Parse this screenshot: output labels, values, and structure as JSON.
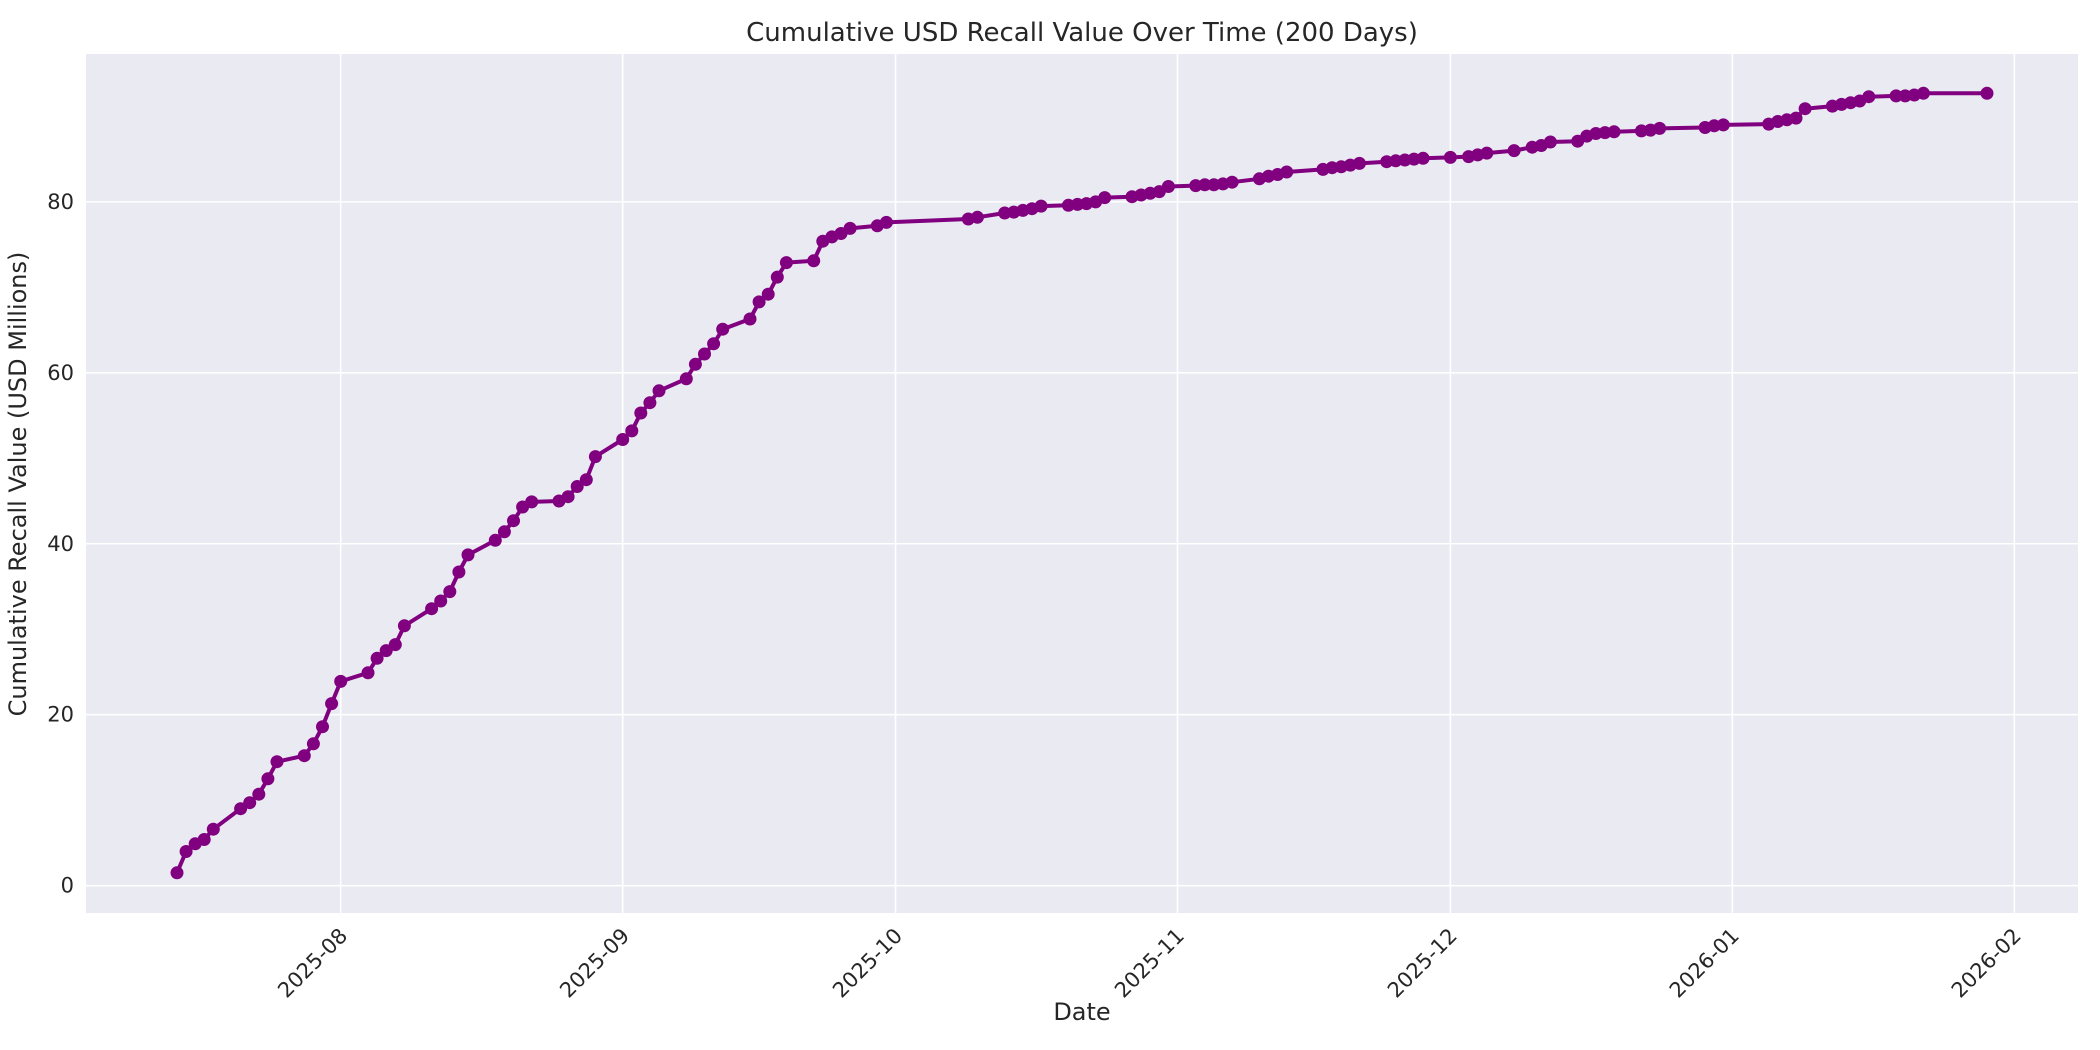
{
  "figure": {
    "title": "Cumulative USD Recall Value Over Time (200 Days)",
    "xlabel": "Date",
    "ylabel": "Cumulative Recall Value (USD Millions)"
  },
  "chart_data": {
    "type": "line",
    "title": "Cumulative USD Recall Value Over Time (200 Days)",
    "xlabel": "Date",
    "ylabel": "Cumulative Recall Value (USD Millions)",
    "legend_position": "none",
    "grid": true,
    "style": {
      "line_color": "#800080",
      "marker": "circle",
      "marker_radius": 6.5,
      "line_width": 4,
      "plot_background": "#eaeaf2",
      "gridline_color": "#ffffff",
      "figure_background": "#ffffff",
      "text_color": "#262626",
      "x_tick_rotation_deg": 45
    },
    "xlim": [
      "2025-07-04",
      "2026-02-08"
    ],
    "ylim": [
      -3.2,
      97.3
    ],
    "x_ticks": [
      {
        "label": "2025-08",
        "date": "2025-08-01"
      },
      {
        "label": "2025-09",
        "date": "2025-09-01"
      },
      {
        "label": "2025-10",
        "date": "2025-10-01"
      },
      {
        "label": "2025-11",
        "date": "2025-11-01"
      },
      {
        "label": "2025-12",
        "date": "2025-12-01"
      },
      {
        "label": "2026-01",
        "date": "2026-01-01"
      },
      {
        "label": "2026-02",
        "date": "2026-02-01"
      }
    ],
    "y_ticks": [
      0,
      20,
      40,
      60,
      80
    ],
    "series": [
      {
        "name": "Cumulative recall value (USD millions)",
        "points": [
          [
            "2025-07-14",
            1.5
          ],
          [
            "2025-07-15",
            4.0
          ],
          [
            "2025-07-16",
            4.9
          ],
          [
            "2025-07-17",
            5.4
          ],
          [
            "2025-07-18",
            6.6
          ],
          [
            "2025-07-21",
            9.0
          ],
          [
            "2025-07-22",
            9.7
          ],
          [
            "2025-07-23",
            10.7
          ],
          [
            "2025-07-24",
            12.5
          ],
          [
            "2025-07-25",
            14.5
          ],
          [
            "2025-07-28",
            15.2
          ],
          [
            "2025-07-29",
            16.6
          ],
          [
            "2025-07-30",
            18.6
          ],
          [
            "2025-07-31",
            21.3
          ],
          [
            "2025-08-01",
            23.9
          ],
          [
            "2025-08-04",
            24.9
          ],
          [
            "2025-08-05",
            26.6
          ],
          [
            "2025-08-06",
            27.5
          ],
          [
            "2025-08-07",
            28.2
          ],
          [
            "2025-08-08",
            30.4
          ],
          [
            "2025-08-11",
            32.4
          ],
          [
            "2025-08-12",
            33.3
          ],
          [
            "2025-08-13",
            34.4
          ],
          [
            "2025-08-14",
            36.7
          ],
          [
            "2025-08-15",
            38.7
          ],
          [
            "2025-08-18",
            40.4
          ],
          [
            "2025-08-19",
            41.4
          ],
          [
            "2025-08-20",
            42.7
          ],
          [
            "2025-08-21",
            44.3
          ],
          [
            "2025-08-22",
            44.9
          ],
          [
            "2025-08-25",
            45.0
          ],
          [
            "2025-08-26",
            45.5
          ],
          [
            "2025-08-27",
            46.7
          ],
          [
            "2025-08-28",
            47.5
          ],
          [
            "2025-08-29",
            50.2
          ],
          [
            "2025-09-01",
            52.2
          ],
          [
            "2025-09-02",
            53.2
          ],
          [
            "2025-09-03",
            55.3
          ],
          [
            "2025-09-04",
            56.5
          ],
          [
            "2025-09-05",
            57.9
          ],
          [
            "2025-09-08",
            59.3
          ],
          [
            "2025-09-09",
            61.0
          ],
          [
            "2025-09-10",
            62.2
          ],
          [
            "2025-09-11",
            63.4
          ],
          [
            "2025-09-12",
            65.1
          ],
          [
            "2025-09-15",
            66.3
          ],
          [
            "2025-09-16",
            68.3
          ],
          [
            "2025-09-17",
            69.2
          ],
          [
            "2025-09-18",
            71.2
          ],
          [
            "2025-09-19",
            72.9
          ],
          [
            "2025-09-22",
            73.1
          ],
          [
            "2025-09-23",
            75.4
          ],
          [
            "2025-09-24",
            75.9
          ],
          [
            "2025-09-25",
            76.3
          ],
          [
            "2025-09-26",
            76.9
          ],
          [
            "2025-09-29",
            77.2
          ],
          [
            "2025-09-30",
            77.6
          ],
          [
            "2025-10-09",
            78.0
          ],
          [
            "2025-10-10",
            78.2
          ],
          [
            "2025-10-13",
            78.7
          ],
          [
            "2025-10-14",
            78.8
          ],
          [
            "2025-10-15",
            79.0
          ],
          [
            "2025-10-16",
            79.2
          ],
          [
            "2025-10-17",
            79.5
          ],
          [
            "2025-10-20",
            79.6
          ],
          [
            "2025-10-21",
            79.7
          ],
          [
            "2025-10-22",
            79.8
          ],
          [
            "2025-10-23",
            80.0
          ],
          [
            "2025-10-24",
            80.5
          ],
          [
            "2025-10-27",
            80.6
          ],
          [
            "2025-10-28",
            80.8
          ],
          [
            "2025-10-29",
            81.0
          ],
          [
            "2025-10-30",
            81.2
          ],
          [
            "2025-10-31",
            81.8
          ],
          [
            "2025-11-03",
            81.9
          ],
          [
            "2025-11-04",
            82.0
          ],
          [
            "2025-11-05",
            82.0
          ],
          [
            "2025-11-06",
            82.1
          ],
          [
            "2025-11-07",
            82.3
          ],
          [
            "2025-11-10",
            82.7
          ],
          [
            "2025-11-11",
            83.0
          ],
          [
            "2025-11-12",
            83.2
          ],
          [
            "2025-11-13",
            83.5
          ],
          [
            "2025-11-17",
            83.8
          ],
          [
            "2025-11-18",
            84.0
          ],
          [
            "2025-11-19",
            84.1
          ],
          [
            "2025-11-20",
            84.3
          ],
          [
            "2025-11-21",
            84.5
          ],
          [
            "2025-11-24",
            84.7
          ],
          [
            "2025-11-25",
            84.8
          ],
          [
            "2025-11-26",
            84.9
          ],
          [
            "2025-11-27",
            85.0
          ],
          [
            "2025-11-28",
            85.1
          ],
          [
            "2025-12-01",
            85.2
          ],
          [
            "2025-12-03",
            85.3
          ],
          [
            "2025-12-04",
            85.5
          ],
          [
            "2025-12-05",
            85.7
          ],
          [
            "2025-12-08",
            86.0
          ],
          [
            "2025-12-10",
            86.4
          ],
          [
            "2025-12-11",
            86.6
          ],
          [
            "2025-12-12",
            87.0
          ],
          [
            "2025-12-15",
            87.1
          ],
          [
            "2025-12-16",
            87.7
          ],
          [
            "2025-12-17",
            88.0
          ],
          [
            "2025-12-18",
            88.1
          ],
          [
            "2025-12-19",
            88.2
          ],
          [
            "2025-12-22",
            88.3
          ],
          [
            "2025-12-23",
            88.4
          ],
          [
            "2025-12-24",
            88.6
          ],
          [
            "2025-12-29",
            88.7
          ],
          [
            "2025-12-30",
            88.9
          ],
          [
            "2025-12-31",
            89.0
          ],
          [
            "2026-01-05",
            89.1
          ],
          [
            "2026-01-06",
            89.4
          ],
          [
            "2026-01-07",
            89.6
          ],
          [
            "2026-01-08",
            89.8
          ],
          [
            "2026-01-09",
            90.9
          ],
          [
            "2026-01-12",
            91.2
          ],
          [
            "2026-01-13",
            91.4
          ],
          [
            "2026-01-14",
            91.6
          ],
          [
            "2026-01-15",
            91.8
          ],
          [
            "2026-01-16",
            92.3
          ],
          [
            "2026-01-19",
            92.4
          ],
          [
            "2026-01-20",
            92.4
          ],
          [
            "2026-01-21",
            92.5
          ],
          [
            "2026-01-22",
            92.7
          ],
          [
            "2026-01-29",
            92.7
          ]
        ]
      }
    ]
  }
}
